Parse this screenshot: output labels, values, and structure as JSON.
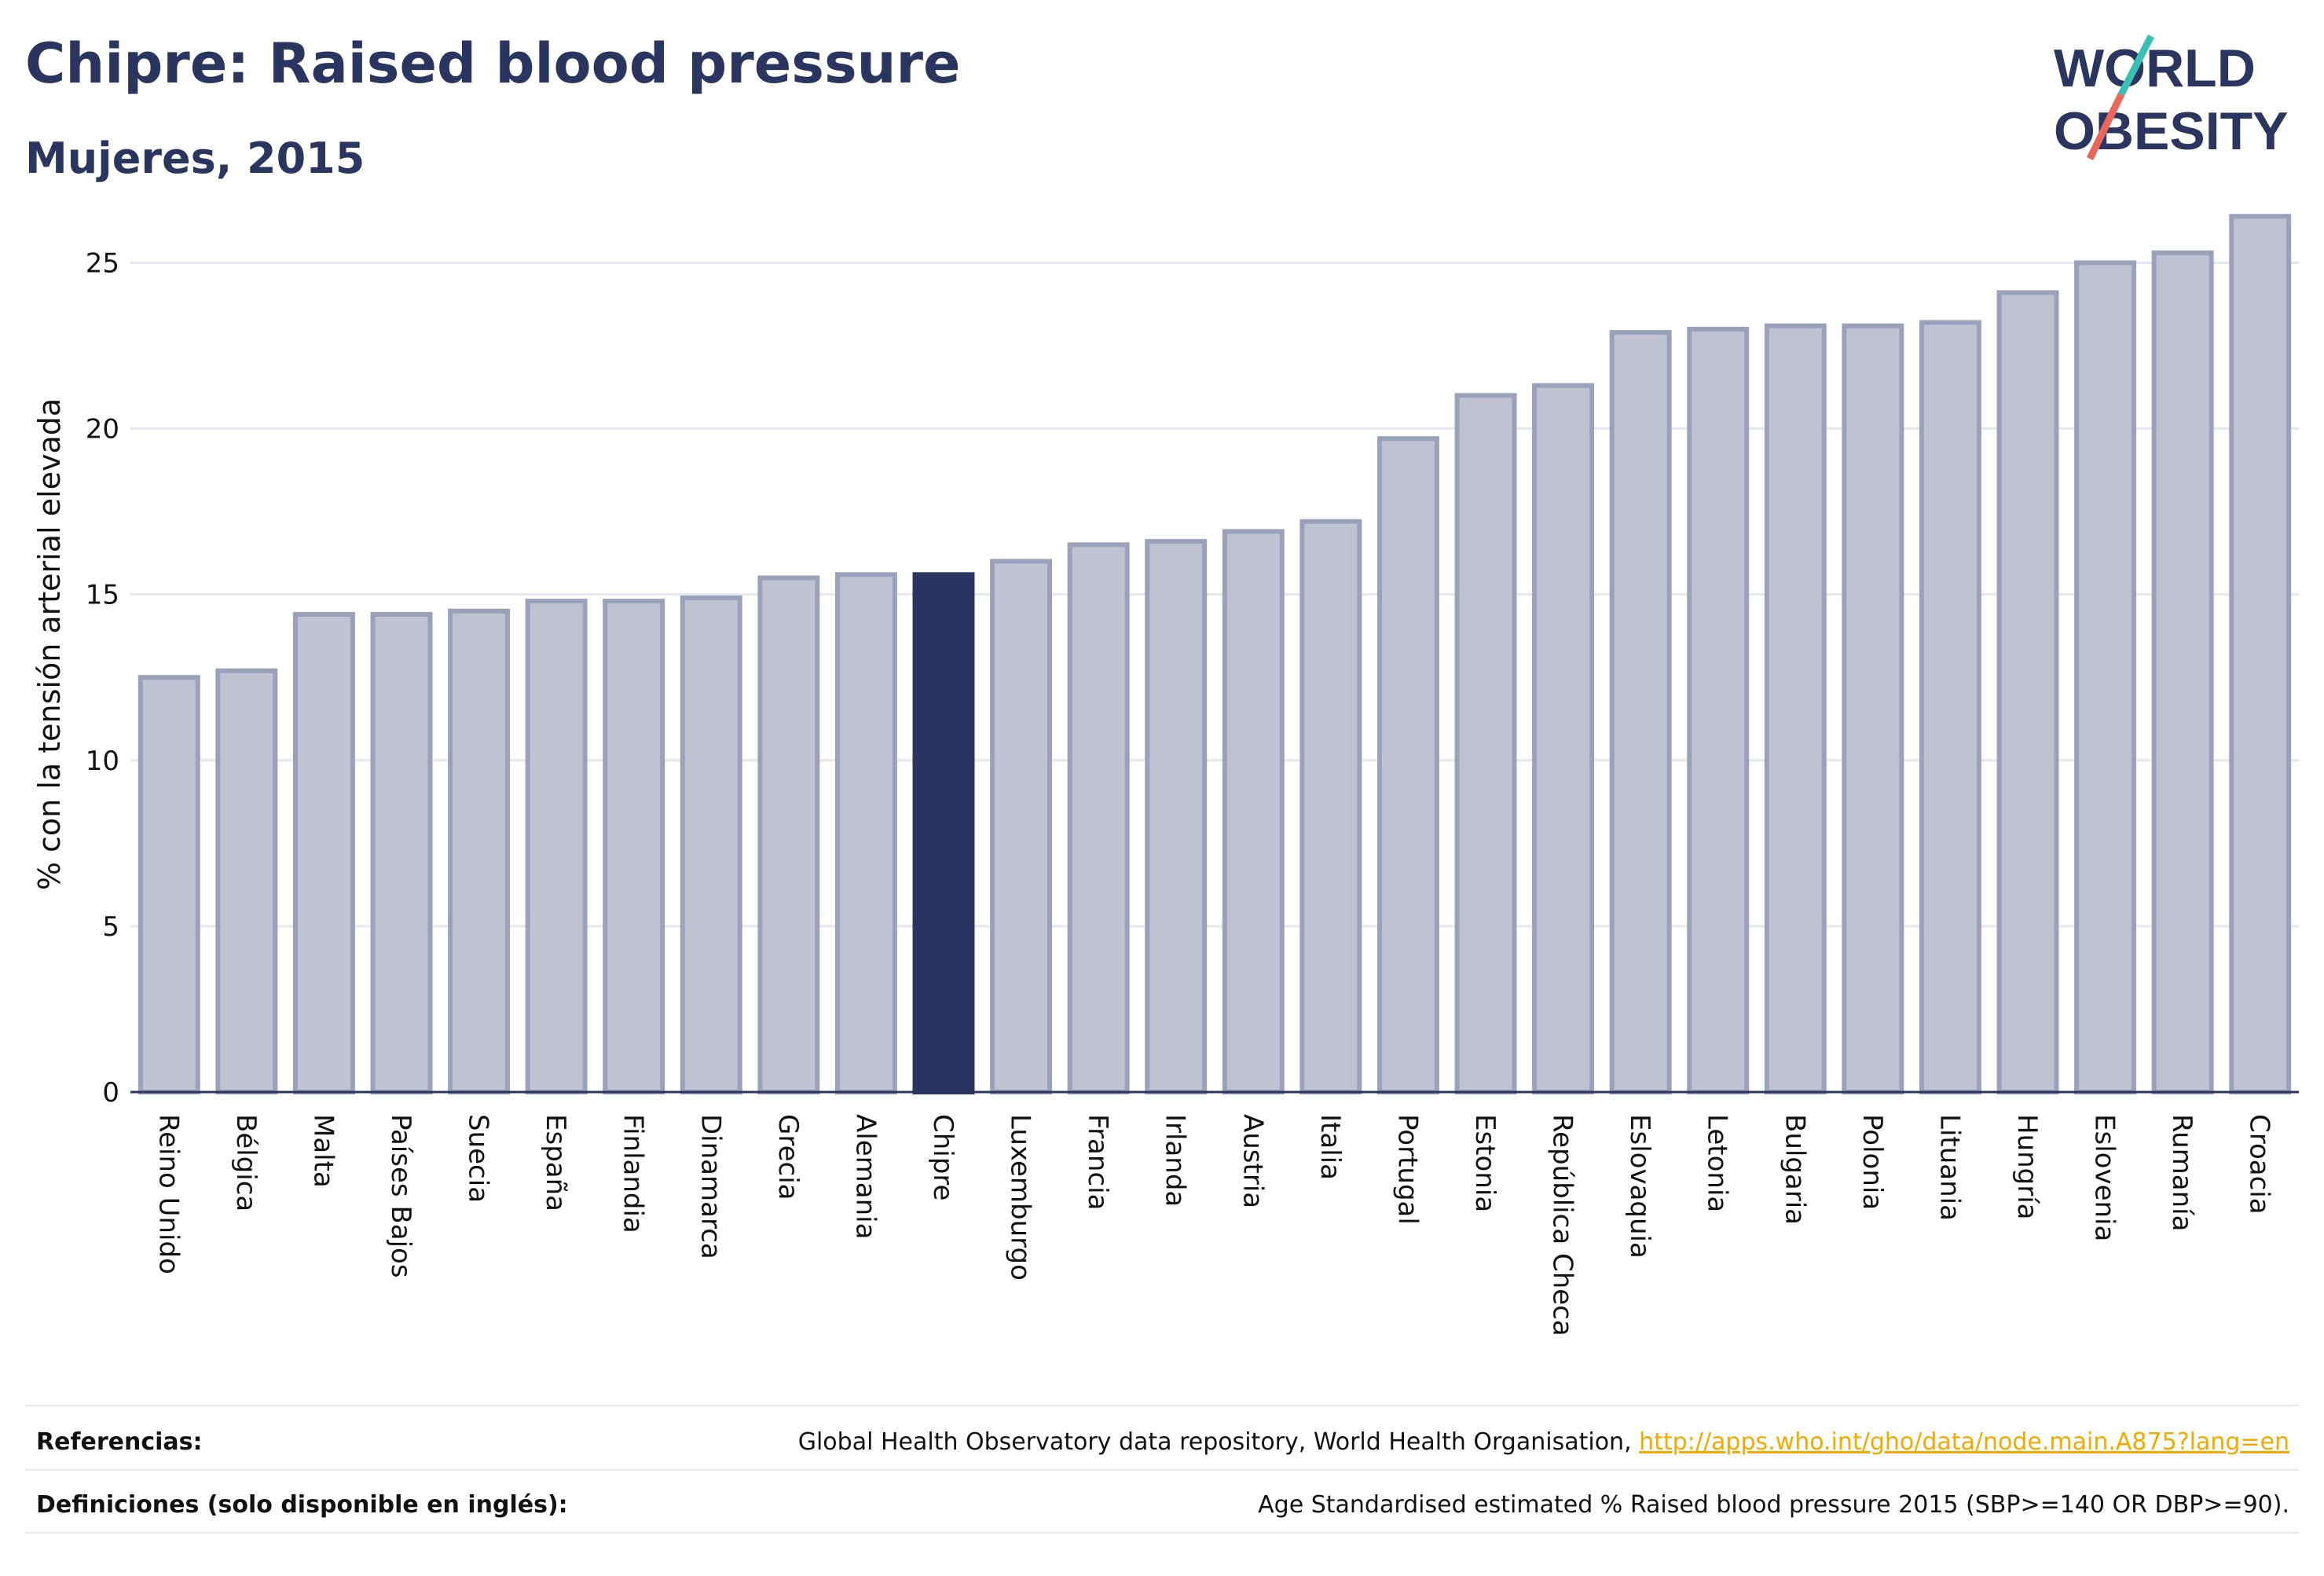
{
  "header": {
    "title": "Chipre: Raised blood pressure",
    "subtitle": "Mujeres, 2015"
  },
  "logo": {
    "line1": "WORLD",
    "line2": "OBESITY"
  },
  "chart_data": {
    "type": "bar",
    "ylabel": "% con la tensión arterial elevada",
    "xlabel": "",
    "ylim": [
      0,
      27
    ],
    "yticks": [
      0,
      5,
      10,
      15,
      20,
      25
    ],
    "grid": true,
    "highlight": "Chipre",
    "colors": {
      "bar": "#bfc3d1",
      "bar_edge": "#9aa1bb",
      "highlight": "#2a3560",
      "grid": "#e5e7ee",
      "axis": "#2a3560"
    },
    "categories": [
      "Reino Unido",
      "Bélgica",
      "Malta",
      "Países Bajos",
      "Suecia",
      "España",
      "Finlandia",
      "Dinamarca",
      "Grecia",
      "Alemania",
      "Chipre",
      "Luxemburgo",
      "Francia",
      "Irlanda",
      "Austria",
      "Italia",
      "Portugal",
      "Estonia",
      "República Checa",
      "Eslovaquia",
      "Letonia",
      "Bulgaria",
      "Polonia",
      "Lituania",
      "Hungría",
      "Eslovenia",
      "Rumanía",
      "Croacia"
    ],
    "values": [
      12.5,
      12.7,
      14.4,
      14.4,
      14.5,
      14.8,
      14.8,
      14.9,
      15.5,
      15.6,
      15.6,
      16.0,
      16.5,
      16.6,
      16.9,
      17.2,
      19.7,
      21.0,
      21.3,
      22.9,
      23.0,
      23.1,
      23.1,
      23.2,
      24.1,
      25.0,
      25.3,
      26.4
    ]
  },
  "footer": {
    "ref_label": "Referencias:",
    "ref_text": "Global Health Observatory data repository, World Health Organisation, ",
    "ref_link": "http://apps.who.int/gho/data/node.main.A875?lang=en",
    "def_label": "Definiciones (solo disponible en inglés):",
    "def_text": "Age Standardised estimated % Raised blood pressure 2015 (SBP>=140 OR DBP>=90)."
  }
}
